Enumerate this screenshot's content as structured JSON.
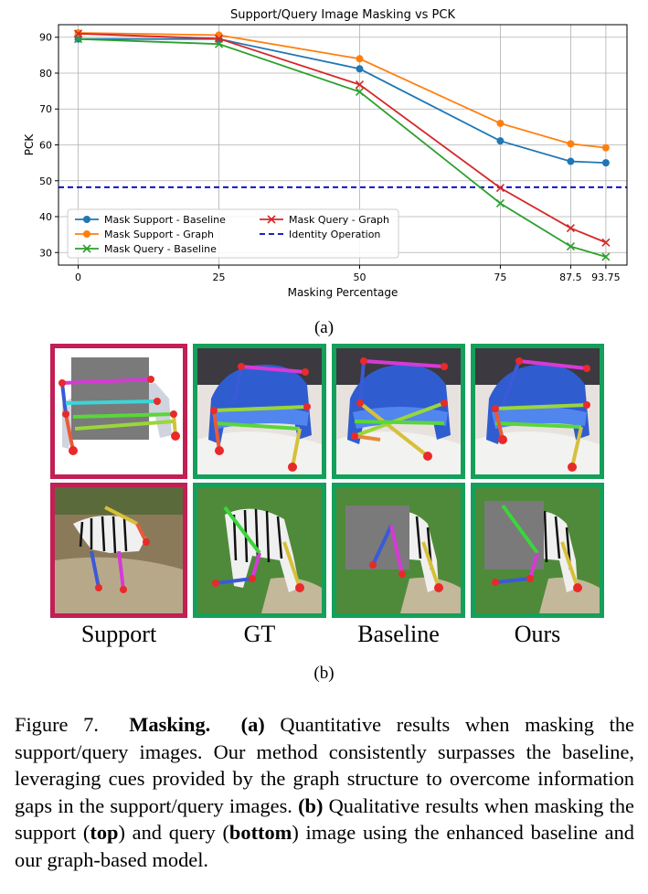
{
  "chart_data": {
    "type": "line",
    "title": "Support/Query Image Masking vs PCK",
    "xlabel": "Masking Percentage",
    "ylabel": "PCK",
    "x": [
      0,
      25,
      50,
      75,
      87.5,
      93.75
    ],
    "x_tick_labels": [
      "0",
      "25",
      "50",
      "75",
      "87.5",
      "93.75"
    ],
    "y_ticks": [
      30,
      40,
      50,
      60,
      70,
      80,
      90
    ],
    "xlim": [
      -3.5,
      97.5
    ],
    "ylim": [
      26.5,
      93.5
    ],
    "grid": true,
    "legend_position": "lower-left",
    "series": [
      {
        "name": "Mask Support - Baseline",
        "color": "#1f77b4",
        "marker": "circle",
        "values": [
          89.5,
          89.5,
          81.2,
          61.1,
          55.4,
          55.0
        ]
      },
      {
        "name": "Mask Support - Graph",
        "color": "#ff7f0e",
        "marker": "circle",
        "values": [
          91.2,
          90.6,
          84.0,
          66.0,
          60.3,
          59.2
        ]
      },
      {
        "name": "Mask Query - Baseline",
        "color": "#2ca02c",
        "marker": "x",
        "values": [
          89.5,
          88.1,
          74.8,
          43.7,
          31.7,
          28.8
        ]
      },
      {
        "name": "Mask Query - Graph",
        "color": "#d62728",
        "marker": "x",
        "values": [
          91.0,
          89.6,
          76.8,
          48.0,
          36.8,
          32.8
        ]
      }
    ],
    "reference_line": {
      "name": "Identity Operation",
      "color": "#0000cc",
      "style": "dashed",
      "value": 48.2
    }
  },
  "labels": {
    "sub_a": "(a)",
    "sub_b": "(b)",
    "col_support": "Support",
    "col_gt": "GT",
    "col_baseline": "Baseline",
    "col_ours": "Ours"
  },
  "caption": {
    "figure": "Figure 7.",
    "title": "Masking.",
    "a_tag": "(a)",
    "a_text": " Quantitative results when masking the support/query images.  Our method consistently surpasses the baseline, leveraging cues provided by the graph structure to overcome information gaps in the support/query images. ",
    "b_tag": "(b)",
    "b_text1": " Qualitative results when masking the support (",
    "top": "top",
    "b_text2": ") and query (",
    "bottom": "bottom",
    "b_text3": ") image using the enhanced baseline and our graph-based model."
  }
}
